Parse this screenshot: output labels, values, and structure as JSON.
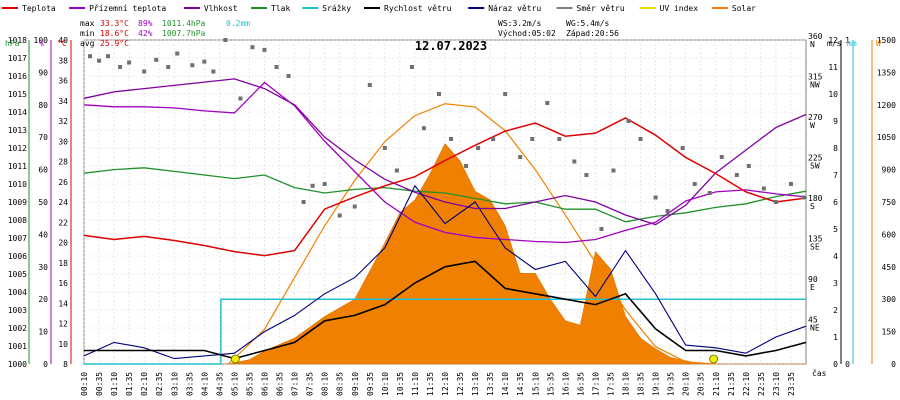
{
  "chart_data": {
    "type": "line",
    "title": "12.07.2023",
    "x_label": "čas",
    "x_ticks": [
      "00:10",
      "00:35",
      "01:10",
      "01:35",
      "02:10",
      "02:35",
      "03:10",
      "03:35",
      "04:10",
      "04:35",
      "05:10",
      "05:35",
      "06:10",
      "06:35",
      "07:10",
      "07:35",
      "08:10",
      "08:35",
      "09:10",
      "09:35",
      "10:10",
      "10:35",
      "11:10",
      "11:35",
      "12:10",
      "12:35",
      "13:10",
      "13:35",
      "14:10",
      "14:35",
      "15:10",
      "15:35",
      "16:10",
      "16:35",
      "17:10",
      "17:35",
      "18:10",
      "18:35",
      "19:10",
      "19:35",
      "20:10",
      "20:35",
      "21:10",
      "21:35",
      "22:10",
      "22:35",
      "23:10",
      "23:35"
    ],
    "legend": [
      {
        "name": "Teplota",
        "color": "#e00000"
      },
      {
        "name": "Přízemní teplota",
        "color": "#a000c0"
      },
      {
        "name": "Vlhkost",
        "color": "#8000a0"
      },
      {
        "name": "Tlak",
        "color": "#20902a"
      },
      {
        "name": "Srážky",
        "color": "#20c0d0"
      },
      {
        "name": "Rychlost větru",
        "color": "#000000"
      },
      {
        "name": "Náraz větru",
        "color": "#000080"
      },
      {
        "name": "Směr větru",
        "color": "#808080"
      },
      {
        "name": "UV index",
        "color": "#f0e000"
      },
      {
        "name": "Solar",
        "color": "#f08000"
      }
    ],
    "stats": {
      "max_label": "max",
      "max_temp": "33.3°C",
      "max_hum": "89%",
      "max_press": "1011.4hPa",
      "rain": "0.2mm",
      "min_label": "min",
      "min_temp": "18.6°C",
      "min_hum": "42%",
      "min_press": "1007.7hPa",
      "avg_label": "avg",
      "avg_temp": "25.9°C"
    },
    "wind_info": {
      "ws": "WS:3.2m/s",
      "wg": "WG:5.4m/s",
      "sunrise": "Východ:05:02",
      "sunset": "Západ:20:56"
    },
    "axes": {
      "pressure": {
        "unit": "hPa",
        "min": 1000,
        "max": 1018,
        "color": "#20902a",
        "ticks": [
          1000,
          1001,
          1002,
          1003,
          1004,
          1005,
          1006,
          1007,
          1008,
          1009,
          1010,
          1011,
          1012,
          1013,
          1014,
          1015,
          1016,
          1017,
          1018
        ]
      },
      "humidity": {
        "unit": "%",
        "min": 0,
        "max": 100,
        "color": "#a000c0",
        "ticks": [
          0,
          10,
          20,
          30,
          40,
          50,
          60,
          70,
          80,
          90,
          100
        ]
      },
      "temperature": {
        "unit": "°C",
        "min": 8,
        "max": 40,
        "color": "#e00000",
        "ticks": [
          8,
          10,
          12,
          14,
          16,
          18,
          20,
          22,
          24,
          26,
          28,
          30,
          32,
          34,
          36,
          38,
          40
        ]
      },
      "direction": {
        "unit": "",
        "min": 0,
        "max": 360,
        "ticks": [
          {
            "v": 45,
            "l": "45",
            "s": "NE"
          },
          {
            "v": 90,
            "l": "90",
            "s": "E"
          },
          {
            "v": 135,
            "l": "135",
            "s": "SE"
          },
          {
            "v": 180,
            "l": "180",
            "s": "S"
          },
          {
            "v": 225,
            "l": "225",
            "s": "SW"
          },
          {
            "v": 270,
            "l": "270",
            "s": "W"
          },
          {
            "v": 315,
            "l": "315",
            "s": "NW"
          },
          {
            "v": 360,
            "l": "360",
            "s": "N"
          }
        ]
      },
      "wind": {
        "unit": "m/s",
        "min": 0,
        "max": 12,
        "ticks": [
          0,
          1,
          2,
          3,
          4,
          5,
          6,
          7,
          8,
          9,
          10,
          11,
          12
        ]
      },
      "rain": {
        "unit": "mm",
        "min": 0,
        "max": 1,
        "color": "#20c0d0",
        "ticks": [
          0,
          1
        ]
      },
      "solar": {
        "unit": "W",
        "min": 0,
        "max": 1500,
        "color": "#f08000",
        "ticks": [
          0,
          150,
          300,
          450,
          600,
          750,
          900,
          1050,
          1200,
          1350,
          1500
        ]
      }
    },
    "series": [
      {
        "name": "Teplota",
        "axis": "temperature",
        "x": [
          0,
          1,
          2,
          3,
          4,
          5,
          6,
          7,
          8,
          9,
          10,
          11,
          12,
          13,
          14,
          15,
          16,
          17,
          18,
          19,
          20,
          21,
          22,
          23,
          24
        ],
        "y": [
          20.7,
          20.3,
          20.6,
          20.2,
          19.7,
          19.1,
          18.7,
          19.2,
          23.3,
          24.5,
          25.6,
          26.5,
          28.1,
          29.6,
          31.0,
          31.8,
          30.5,
          30.8,
          32.3,
          30.6,
          28.4,
          26.8,
          25.0,
          24.0,
          24.4
        ]
      },
      {
        "name": "Přízemní teplota",
        "axis": "temperature",
        "x": [
          0,
          1,
          2,
          3,
          4,
          5,
          6,
          7,
          8,
          9,
          10,
          11,
          12,
          13,
          14,
          15,
          16,
          17,
          18,
          19,
          20,
          21,
          22,
          23,
          24
        ],
        "y": [
          33.6,
          33.4,
          33.4,
          33.3,
          33.0,
          32.8,
          35.8,
          33.5,
          30.0,
          27.0,
          24.0,
          22.0,
          21.0,
          20.5,
          20.3,
          20.1,
          20.0,
          20.3,
          21.2,
          22.0,
          24.1,
          25.0,
          25.2,
          24.8,
          24.5
        ]
      },
      {
        "name": "Vlhkost",
        "axis": "humidity",
        "x": [
          0,
          1,
          2,
          3,
          4,
          5,
          6,
          7,
          8,
          9,
          10,
          11,
          12,
          13,
          14,
          15,
          16,
          17,
          18,
          19,
          20,
          21,
          22,
          23,
          24
        ],
        "y": [
          82,
          84,
          85,
          86,
          87,
          88,
          85,
          80,
          70,
          63,
          57,
          53,
          50,
          48,
          48,
          50,
          52,
          50,
          46,
          43,
          49,
          59,
          66,
          73,
          77
        ]
      },
      {
        "name": "Tlak",
        "axis": "pressure",
        "x": [
          0,
          1,
          2,
          3,
          4,
          5,
          6,
          7,
          8,
          9,
          10,
          11,
          12,
          13,
          14,
          15,
          16,
          17,
          18,
          19,
          20,
          21,
          22,
          23,
          24
        ],
        "y": [
          1010.6,
          1010.8,
          1010.9,
          1010.7,
          1010.5,
          1010.3,
          1010.5,
          1009.8,
          1009.5,
          1009.7,
          1009.8,
          1009.6,
          1009.5,
          1009.2,
          1008.9,
          1009.0,
          1008.6,
          1008.6,
          1007.9,
          1008.2,
          1008.4,
          1008.7,
          1008.9,
          1009.3,
          1009.6
        ]
      },
      {
        "name": "Srážky",
        "axis": "rain",
        "x": [
          0,
          4.5,
          4.55,
          24
        ],
        "y": [
          0,
          0,
          0.2,
          0.2
        ]
      },
      {
        "name": "Rychlost větru",
        "axis": "wind",
        "x": [
          0,
          1,
          2,
          3,
          4,
          5,
          6,
          7,
          8,
          9,
          10,
          11,
          12,
          13,
          14,
          15,
          16,
          17,
          18,
          19,
          20,
          21,
          22,
          23,
          24
        ],
        "y": [
          0.5,
          0.5,
          0.5,
          0.5,
          0.5,
          0.2,
          0.5,
          0.8,
          1.6,
          1.8,
          2.2,
          3.0,
          3.6,
          3.8,
          2.8,
          2.6,
          2.4,
          2.2,
          2.6,
          1.3,
          0.5,
          0.5,
          0.3,
          0.5,
          0.8
        ]
      },
      {
        "name": "Náraz větru",
        "axis": "wind",
        "x": [
          0,
          1,
          2,
          3,
          4,
          5,
          6,
          7,
          8,
          9,
          10,
          11,
          12,
          13,
          14,
          15,
          16,
          17,
          18,
          19,
          20,
          21,
          22,
          23,
          24
        ],
        "y": [
          0.3,
          0.8,
          0.6,
          0.2,
          0.3,
          0.4,
          1.2,
          1.8,
          2.6,
          3.2,
          4.3,
          6.6,
          5.2,
          6.0,
          4.3,
          3.5,
          3.8,
          2.5,
          4.2,
          2.6,
          0.7,
          0.6,
          0.4,
          1.0,
          1.4
        ]
      },
      {
        "name": "Solar",
        "axis": "solar",
        "x": [
          0,
          4.8,
          5.5,
          6,
          7,
          8,
          9,
          10,
          10.5,
          11,
          11.5,
          12,
          12.5,
          13,
          13.5,
          14,
          14.5,
          15,
          15.5,
          16,
          16.5,
          17,
          17.5,
          18,
          18.5,
          19,
          19.5,
          20.5,
          24
        ],
        "y": [
          0,
          0,
          20,
          60,
          120,
          220,
          300,
          560,
          700,
          760,
          880,
          1020,
          940,
          800,
          760,
          640,
          420,
          420,
          300,
          200,
          180,
          520,
          440,
          220,
          120,
          70,
          30,
          0,
          0
        ]
      },
      {
        "name": "Solar max",
        "axis": "solar",
        "x": [
          4.8,
          6,
          7,
          8,
          9,
          10,
          11,
          12,
          13,
          14,
          15,
          16,
          17,
          18,
          19,
          20,
          21
        ],
        "y": [
          0,
          160,
          400,
          640,
          850,
          1030,
          1150,
          1205,
          1190,
          1080,
          900,
          690,
          470,
          250,
          80,
          10,
          0
        ]
      },
      {
        "name": "Směr větru",
        "axis": "direction",
        "type": "scatter",
        "x": [
          0.2,
          0.5,
          0.8,
          1.2,
          1.5,
          2.0,
          2.4,
          2.8,
          3.1,
          3.6,
          4.0,
          4.3,
          4.7,
          5.2,
          5.6,
          6.0,
          6.4,
          6.8,
          7.3,
          7.6,
          8.0,
          8.5,
          9.0,
          9.5,
          10.0,
          10.4,
          10.9,
          11.3,
          11.8,
          12.2,
          12.7,
          13.1,
          13.6,
          14.0,
          14.5,
          14.9,
          15.4,
          15.8,
          16.3,
          16.7,
          17.2,
          17.6,
          18.1,
          18.5,
          19.0,
          19.4,
          19.9,
          20.3,
          20.8,
          21.2,
          21.7,
          22.1,
          22.6,
          23.0,
          23.5,
          23.9
        ],
        "y": [
          342,
          337,
          342,
          330,
          335,
          325,
          338,
          330,
          345,
          332,
          336,
          325,
          360,
          295,
          352,
          349,
          330,
          320,
          180,
          198,
          200,
          165,
          175,
          310,
          240,
          215,
          330,
          262,
          300,
          250,
          220,
          240,
          250,
          300,
          230,
          250,
          290,
          250,
          225,
          210,
          150,
          215,
          270,
          250,
          185,
          170,
          240,
          200,
          190,
          230,
          210,
          220,
          195,
          180,
          200,
          185
        ]
      }
    ]
  }
}
